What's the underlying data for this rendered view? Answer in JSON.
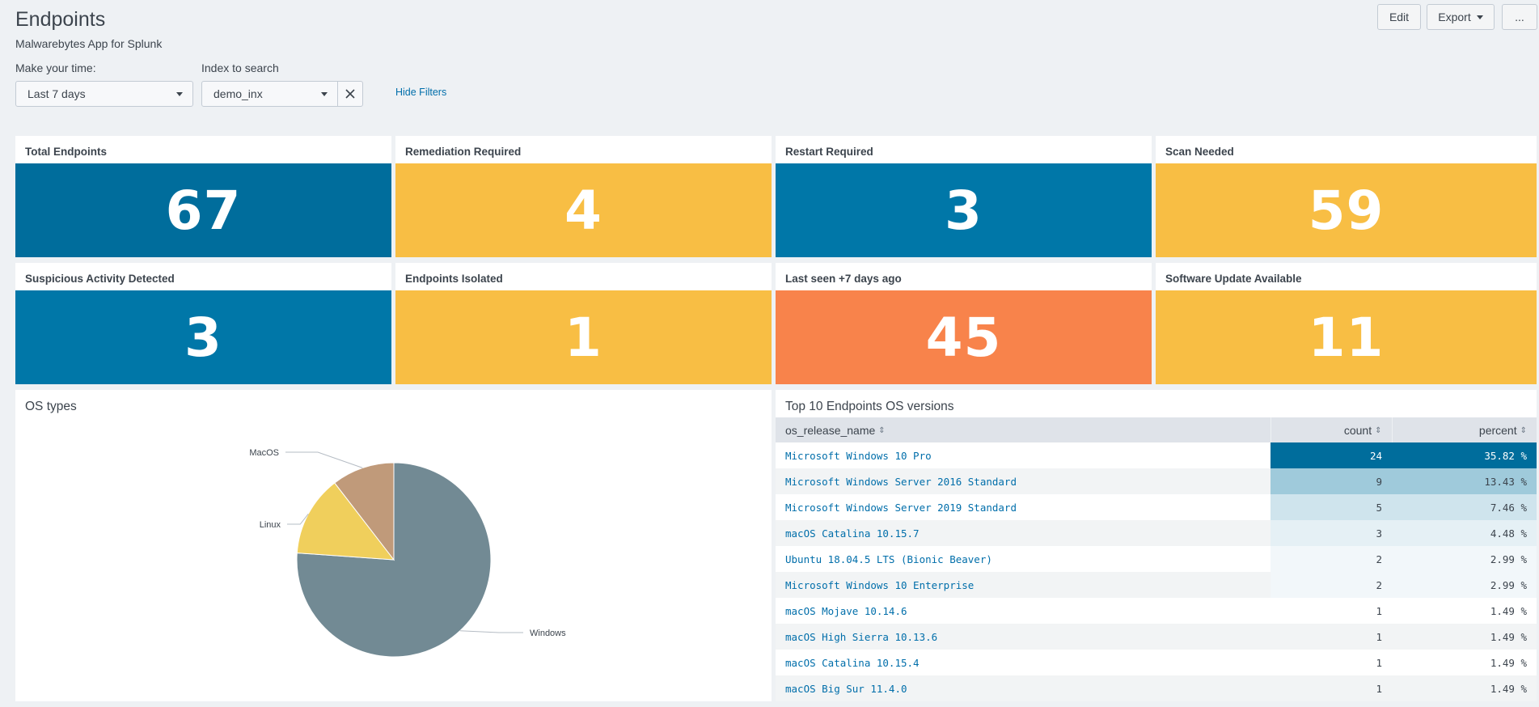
{
  "header": {
    "title": "Endpoints",
    "subtitle": "Malwarebytes App for Splunk",
    "edit_label": "Edit",
    "export_label": "Export",
    "more_label": "..."
  },
  "filters": {
    "time_label": "Make your time:",
    "time_value": "Last 7 days",
    "index_label": "Index to search",
    "index_value": "demo_inx",
    "hide_filters_label": "Hide Filters"
  },
  "single_values": [
    {
      "title": "Total Endpoints",
      "value": "67",
      "color": "#006d9c"
    },
    {
      "title": "Remediation Required",
      "value": "4",
      "color": "#f8be44"
    },
    {
      "title": "Restart Required",
      "value": "3",
      "color": "#0077a8"
    },
    {
      "title": "Scan Needed",
      "value": "59",
      "color": "#f8be44"
    },
    {
      "title": "Suspicious Activity Detected",
      "value": "3",
      "color": "#0077a8"
    },
    {
      "title": "Endpoints Isolated",
      "value": "1",
      "color": "#f8be44"
    },
    {
      "title": "Last seen +7 days ago",
      "value": "45",
      "color": "#f8834b"
    },
    {
      "title": "Software Update Available",
      "value": "11",
      "color": "#f8be44"
    }
  ],
  "os_types": {
    "title": "OS types",
    "chart_data": {
      "type": "pie",
      "title": "",
      "slices": [
        {
          "label": "Windows",
          "value": 51,
          "color": "#728a94"
        },
        {
          "label": "Linux",
          "value": 9,
          "color": "#f0cf5c"
        },
        {
          "label": "MacOS",
          "value": 7,
          "color": "#c09a7a"
        }
      ]
    }
  },
  "os_versions": {
    "title": "Top 10 Endpoints OS versions",
    "columns": [
      "os_release_name",
      "count",
      "percent"
    ],
    "rows": [
      {
        "name": "Microsoft Windows 10 Pro",
        "count": "24",
        "percent": "35.82 %",
        "heat": "#006d9c",
        "heat_text": "#ffffff"
      },
      {
        "name": "Microsoft Windows Server 2016 Standard",
        "count": "9",
        "percent": "13.43 %",
        "heat": "#9fcadb",
        "heat_text": "#3c444d"
      },
      {
        "name": "Microsoft Windows Server 2019 Standard",
        "count": "5",
        "percent": "7.46 %",
        "heat": "#cfe4ed",
        "heat_text": "#3c444d"
      },
      {
        "name": "macOS Catalina 10.15.7",
        "count": "3",
        "percent": "4.48 %",
        "heat": "#e5f0f5",
        "heat_text": "#3c444d"
      },
      {
        "name": "Ubuntu 18.04.5 LTS (Bionic Beaver)",
        "count": "2",
        "percent": "2.99 %",
        "heat": "#f2f7fa",
        "heat_text": "#3c444d"
      },
      {
        "name": "Microsoft Windows 10 Enterprise",
        "count": "2",
        "percent": "2.99 %",
        "heat": "#f2f7fa",
        "heat_text": "#3c444d"
      },
      {
        "name": "macOS Mojave 10.14.6",
        "count": "1",
        "percent": "1.49 %",
        "heat": "",
        "heat_text": "#3c444d"
      },
      {
        "name": "macOS High Sierra 10.13.6",
        "count": "1",
        "percent": "1.49 %",
        "heat": "",
        "heat_text": "#3c444d"
      },
      {
        "name": "macOS Catalina 10.15.4",
        "count": "1",
        "percent": "1.49 %",
        "heat": "",
        "heat_text": "#3c444d"
      },
      {
        "name": "macOS Big Sur 11.4.0",
        "count": "1",
        "percent": "1.49 %",
        "heat": "",
        "heat_text": "#3c444d"
      }
    ]
  },
  "icons": {
    "sort": "sort-icon",
    "clear": "close-icon",
    "dropdown": "chevron-down-icon"
  }
}
